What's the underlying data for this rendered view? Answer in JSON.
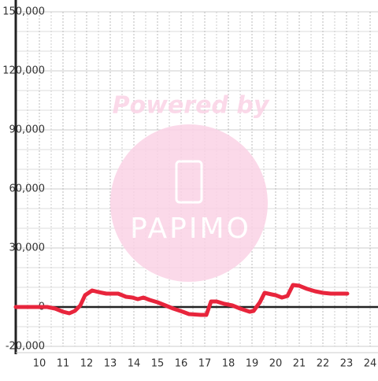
{
  "chart_data": {
    "type": "line",
    "watermark": {
      "line1": "Powered by",
      "line2": "PAPIMO"
    },
    "x": [
      9,
      10.333,
      10.667,
      11,
      11.267,
      11.5,
      11.733,
      11.933,
      12.233,
      12.5,
      12.833,
      13.333,
      13.667,
      13.933,
      14.167,
      14.4,
      14.667,
      15,
      15.333,
      15.667,
      16.067,
      16.333,
      16.833,
      17.067,
      17.267,
      17.5,
      17.833,
      18.167,
      18.5,
      18.9,
      19.067,
      19.333,
      19.533,
      19.833,
      20,
      20.267,
      20.5,
      20.733,
      21,
      21.333,
      21.667,
      22,
      22.333,
      23.033
    ],
    "series": [
      {
        "color": "#e8253c",
        "values": [
          0,
          0,
          -800,
          -2400,
          -3200,
          -2000,
          800,
          6000,
          8400,
          7600,
          6800,
          6800,
          5200,
          4800,
          4000,
          4800,
          3600,
          2400,
          800,
          -800,
          -2400,
          -3600,
          -4000,
          -4000,
          2800,
          2800,
          1600,
          800,
          -800,
          -2400,
          -2000,
          2400,
          7200,
          6400,
          6000,
          4800,
          5600,
          11200,
          10800,
          9200,
          8000,
          7200,
          6800,
          6800
        ]
      }
    ],
    "xlim": [
      9,
      24.333
    ],
    "xticks": [
      10,
      11,
      12,
      13,
      14,
      15,
      16,
      17,
      18,
      19,
      20,
      21,
      22,
      23,
      24
    ],
    "ylim": [
      -20000,
      150000
    ],
    "yticks": [
      {
        "value": -20000,
        "label": "-20,000"
      },
      0,
      {
        "value": 30000,
        "label": "30,000"
      },
      {
        "value": 60000,
        "label": "60,000"
      },
      {
        "value": 90000,
        "label": "90,000"
      },
      {
        "value": 120000,
        "label": "120,000"
      },
      {
        "value": 150000,
        "label": "150,000"
      }
    ],
    "grid": true
  }
}
